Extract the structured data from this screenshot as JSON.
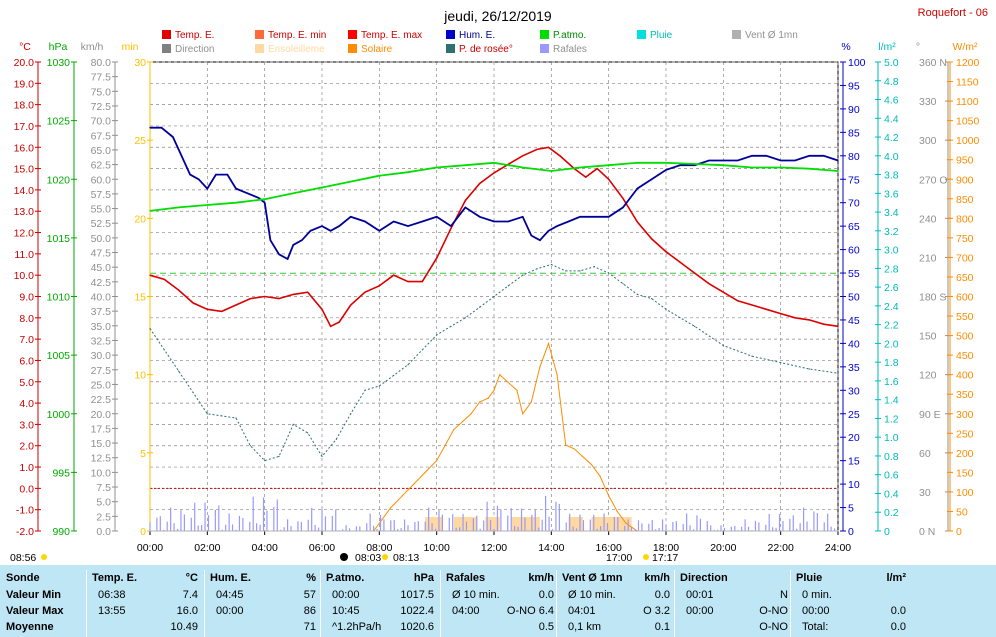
{
  "header": {
    "title": "jeudi, 26/12/2019",
    "station": "Roquefort - 06"
  },
  "legend": [
    {
      "label": "Temp. E.",
      "color": "#e00000"
    },
    {
      "label": "Temp. E. min",
      "color": "#ff6a3a"
    },
    {
      "label": "Temp. E. max",
      "color": "#ff0000"
    },
    {
      "label": "Hum. E.",
      "color": "#0000cc"
    },
    {
      "label": "P.atmo.",
      "color": "#00dd00"
    },
    {
      "label": "Pluie",
      "color": "#00e0e0"
    },
    {
      "label": "Vent Ø 1mn",
      "color": "#b0b0b0"
    },
    {
      "label": "Direction",
      "color": "#808080"
    },
    {
      "label": "Ensoleilleme",
      "color": "#ffd9a0"
    },
    {
      "label": "Solaire",
      "color": "#ff8c00"
    },
    {
      "label": "P. de rosée°",
      "color": "#2f6f6f"
    },
    {
      "label": "Rafales",
      "color": "#9999ff"
    }
  ],
  "axis_units": [
    "°C",
    "hPa",
    "km/h",
    "min",
    "%",
    "l/m²",
    "°",
    "W/m²"
  ],
  "axes": {
    "temp": [
      "20.0",
      "19.0",
      "18.0",
      "17.0",
      "16.0",
      "15.0",
      "14.0",
      "13.0",
      "12.0",
      "11.0",
      "10.0",
      "9.0",
      "8.0",
      "7.0",
      "6.0",
      "5.0",
      "4.0",
      "3.0",
      "2.0",
      "1.0",
      "0.0",
      "-1.0",
      "-2.0"
    ],
    "press": [
      "1030",
      "1025",
      "1020",
      "1015",
      "1010",
      "1005",
      "1000",
      "995",
      "990"
    ],
    "wind": [
      "80.0",
      "77.5",
      "75.0",
      "72.5",
      "70.0",
      "67.5",
      "65.0",
      "62.5",
      "60.0",
      "57.5",
      "55.0",
      "52.5",
      "50.0",
      "47.5",
      "45.0",
      "42.5",
      "40.0",
      "37.5",
      "35.0",
      "32.5",
      "30.0",
      "27.5",
      "25.0",
      "22.5",
      "20.0",
      "17.5",
      "15.0",
      "12.5",
      "10.0",
      "7.5",
      "5.0",
      "2.5",
      "0.0"
    ],
    "sun": [
      "30",
      "25",
      "20",
      "15",
      "10",
      "5",
      "0"
    ],
    "hum": [
      "100",
      "95",
      "90",
      "85",
      "80",
      "75",
      "70",
      "65",
      "60",
      "55",
      "50",
      "45",
      "40",
      "35",
      "30",
      "25",
      "20",
      "15",
      "10",
      "5",
      "0"
    ],
    "rain": [
      "5.0",
      "4.8",
      "4.6",
      "4.4",
      "4.2",
      "4.0",
      "3.8",
      "3.6",
      "3.4",
      "3.2",
      "3.0",
      "2.8",
      "2.6",
      "2.4",
      "2.2",
      "2.0",
      "1.8",
      "1.6",
      "1.4",
      "1.2",
      "1.0",
      "0.8",
      "0.6",
      "0.4",
      "0.2",
      "0"
    ],
    "dir": [
      "360 N",
      "330",
      "300",
      "270 O",
      "240",
      "210",
      "180 S",
      "150",
      "120",
      "90 E",
      "60",
      "30",
      "0 N"
    ],
    "solar": [
      "1200",
      "1150",
      "1100",
      "1050",
      "1000",
      "950",
      "900",
      "850",
      "800",
      "750",
      "700",
      "650",
      "600",
      "550",
      "500",
      "450",
      "400",
      "350",
      "300",
      "250",
      "200",
      "150",
      "100",
      "50",
      "0"
    ],
    "time": [
      "00:00",
      "02:00",
      "04:00",
      "06:00",
      "08:00",
      "10:00",
      "12:00",
      "14:00",
      "16:00",
      "18:00",
      "20:00",
      "22:00",
      "24:00"
    ]
  },
  "sun_events": {
    "sunrise": "08:03",
    "sunset_label": "17:00",
    "transit": "08:13",
    "sunset2": "17:17",
    "left_time": "08:56"
  },
  "chart_data": {
    "type": "line",
    "title": "jeudi, 26/12/2019",
    "x_unit": "hour",
    "xlim": [
      0,
      24
    ],
    "series": [
      {
        "name": "Temp. E.",
        "unit": "°C",
        "ylim": [
          -2,
          20
        ],
        "x": [
          0,
          0.5,
          1,
          1.5,
          2,
          2.5,
          3,
          3.5,
          4,
          4.5,
          5,
          5.5,
          6,
          6.3,
          6.6,
          7,
          7.5,
          8,
          8.5,
          9,
          9.5,
          10,
          10.5,
          11,
          11.5,
          12,
          12.5,
          13,
          13.5,
          13.9,
          14.3,
          14.8,
          15.2,
          15.6,
          16,
          16.5,
          17,
          17.5,
          18,
          18.5,
          19,
          19.5,
          20,
          20.5,
          21,
          21.5,
          22,
          22.5,
          23,
          23.5,
          24
        ],
        "y": [
          10,
          9.8,
          9.3,
          8.7,
          8.4,
          8.3,
          8.6,
          8.9,
          9.0,
          8.9,
          9.1,
          9.2,
          8.4,
          7.6,
          7.8,
          8.6,
          9.2,
          9.5,
          10.0,
          9.7,
          9.7,
          10.8,
          12.2,
          13.5,
          14.3,
          14.8,
          15.2,
          15.6,
          15.9,
          16.0,
          15.6,
          15.0,
          14.6,
          15.0,
          14.5,
          13.6,
          12.5,
          11.7,
          11.1,
          10.6,
          10.1,
          9.6,
          9.2,
          8.8,
          8.6,
          8.4,
          8.2,
          8.0,
          7.9,
          7.7,
          7.6
        ]
      },
      {
        "name": "Hum. E.",
        "unit": "%",
        "ylim": [
          0,
          100
        ],
        "x": [
          0,
          0.4,
          0.8,
          1.1,
          1.4,
          1.7,
          2,
          2.3,
          2.7,
          3,
          3.4,
          3.8,
          4,
          4.2,
          4.5,
          4.8,
          5,
          5.3,
          5.6,
          6,
          6.3,
          6.6,
          7,
          7.5,
          8,
          8.5,
          9,
          9.5,
          10,
          10.5,
          11,
          11.5,
          12,
          12.5,
          13,
          13.3,
          13.6,
          13.9,
          14.2,
          14.6,
          15,
          15.5,
          16,
          16.5,
          17,
          17.5,
          18,
          18.5,
          19,
          19.5,
          20,
          20.5,
          21,
          21.5,
          22,
          22.5,
          23,
          23.5,
          24
        ],
        "y": [
          86,
          86,
          84,
          80,
          76,
          75,
          73,
          76,
          76,
          73,
          72,
          71,
          70,
          62,
          59,
          58,
          61,
          62,
          64,
          65,
          64,
          65,
          67,
          66,
          64,
          66,
          65,
          66,
          67,
          65,
          69,
          67,
          66,
          66,
          67,
          63,
          62,
          64,
          65,
          66,
          67,
          67,
          67,
          69,
          73,
          75,
          77,
          78,
          78,
          79,
          79,
          79,
          80,
          80,
          79,
          79,
          80,
          80,
          79
        ]
      },
      {
        "name": "P.atmo.",
        "unit": "hPa",
        "ylim": [
          990,
          1030
        ],
        "x": [
          0,
          1,
          2,
          3,
          4,
          5,
          6,
          7,
          8,
          9,
          10,
          11,
          12,
          13,
          14,
          15,
          16,
          17,
          18,
          19,
          20,
          21,
          22,
          23,
          24
        ],
        "y": [
          1017.3,
          1017.6,
          1017.8,
          1018.0,
          1018.3,
          1018.8,
          1019.3,
          1019.8,
          1020.3,
          1020.6,
          1021.0,
          1021.2,
          1021.4,
          1021.0,
          1020.7,
          1021.0,
          1021.2,
          1021.4,
          1021.4,
          1021.3,
          1021.2,
          1021.0,
          1021.0,
          1020.9,
          1020.7
        ]
      },
      {
        "name": "P. de rosée°",
        "unit": "°C",
        "ylim": [
          -2,
          20
        ],
        "x": [
          0,
          0.5,
          1,
          1.5,
          2,
          2.5,
          3,
          3.5,
          4,
          4.5,
          5,
          5.5,
          6,
          6.5,
          7,
          7.5,
          8,
          8.5,
          9,
          9.5,
          10,
          10.5,
          11,
          11.5,
          12,
          12.5,
          13,
          13.5,
          14,
          14.5,
          15,
          15.5,
          16,
          16.5,
          17,
          17.5,
          18,
          19,
          20,
          21,
          22,
          23,
          24
        ],
        "y": [
          7.5,
          6.5,
          5.5,
          4.5,
          3.5,
          3.4,
          3.3,
          2.0,
          1.3,
          1.5,
          3.0,
          2.6,
          1.5,
          2.3,
          3.5,
          4.6,
          4.8,
          5.3,
          5.8,
          6.5,
          7.2,
          7.6,
          8.0,
          8.5,
          9.0,
          9.5,
          10.0,
          10.3,
          10.5,
          10.2,
          10.2,
          10.4,
          10.1,
          9.6,
          9.1,
          8.9,
          8.4,
          7.6,
          6.7,
          6.2,
          5.9,
          5.6,
          5.4
        ]
      },
      {
        "name": "Solaire",
        "unit": "W/m²",
        "ylim": [
          0,
          1200
        ],
        "x": [
          7.8,
          8.1,
          8.4,
          8.8,
          9.2,
          9.6,
          10,
          10.3,
          10.6,
          10.9,
          11.2,
          11.5,
          11.8,
          12,
          12.2,
          12.5,
          12.8,
          13,
          13.3,
          13.6,
          13.9,
          14.2,
          14.5,
          14.8,
          15.1,
          15.4,
          15.7,
          16,
          16.3,
          16.6,
          17
        ],
        "y": [
          0,
          30,
          60,
          90,
          120,
          150,
          180,
          220,
          260,
          280,
          300,
          330,
          340,
          360,
          400,
          380,
          360,
          300,
          330,
          420,
          480,
          400,
          220,
          210,
          190,
          170,
          140,
          90,
          50,
          20,
          0
        ]
      },
      {
        "name": "Rafales",
        "unit": "km/h",
        "ylim": [
          0,
          80
        ],
        "x": [
          0,
          1,
          2,
          3,
          4,
          5,
          6,
          7,
          8,
          9,
          10,
          11,
          12,
          13,
          14,
          15,
          16,
          17,
          18,
          19,
          20,
          21,
          22,
          23,
          24
        ],
        "y": [
          3,
          4,
          5,
          3,
          6,
          2,
          4,
          1,
          3,
          2,
          4,
          3,
          5,
          4,
          6,
          3,
          3,
          2,
          2,
          3,
          1,
          2,
          3,
          4,
          3
        ]
      },
      {
        "name": "Vent Ø 1mn",
        "unit": "km/h",
        "ylim": [
          0,
          80
        ],
        "x": [
          0,
          2,
          4,
          6,
          8,
          10,
          12,
          14,
          16,
          18,
          20,
          22,
          24
        ],
        "y": [
          0,
          0,
          0,
          0,
          0,
          0,
          0,
          0,
          0,
          0,
          0,
          0,
          0
        ]
      }
    ]
  },
  "table": {
    "headers": [
      {
        "label": "Sonde",
        "unit": ""
      },
      {
        "label": "Temp. E.",
        "unit": "°C"
      },
      {
        "label": "Hum. E.",
        "unit": "%"
      },
      {
        "label": "P.atmo.",
        "unit": "hPa"
      },
      {
        "label": "Rafales",
        "unit": "km/h"
      },
      {
        "label": "Vent Ø 1mn",
        "unit": "km/h"
      },
      {
        "label": "Direction",
        "unit": ""
      },
      {
        "label": "Pluie",
        "unit": "l/m²"
      }
    ],
    "rows": [
      {
        "label": "Valeur Min",
        "cells": [
          "06:38",
          "7.4",
          "04:45",
          "57",
          "00:00",
          "1017.5",
          "Ø 10 min.",
          "0.0",
          "Ø 10 min.",
          "0.0",
          "00:01",
          "N",
          "0 min.",
          ""
        ]
      },
      {
        "label": "Valeur Max",
        "cells": [
          "13:55",
          "16.0",
          "00:00",
          "86",
          "10:45",
          "1022.4",
          "04:00",
          "O-NO 6.4",
          "04:01",
          "O 3.2",
          "00:00",
          "O-NO",
          "00:00",
          "0.0"
        ]
      },
      {
        "label": "Moyenne",
        "cells": [
          "",
          "10.49",
          "",
          "71",
          "^1.2hPa/h",
          "1020.6",
          "",
          "0.5",
          "0,1 km",
          "0.1",
          "",
          "O-NO",
          "Total:",
          "0.0"
        ]
      }
    ]
  }
}
